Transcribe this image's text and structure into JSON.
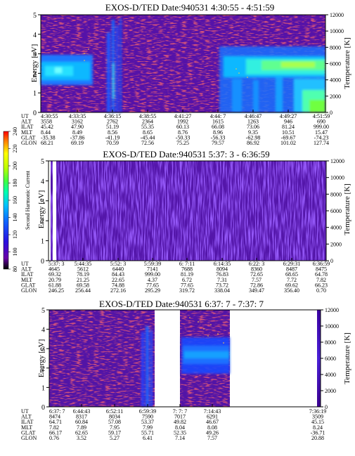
{
  "figure": {
    "colorbar": {
      "title": "Second Harmonic Current",
      "ticks": [
        "80",
        "100",
        "120",
        "140",
        "160",
        "180",
        "200",
        "220",
        "240"
      ],
      "colors": [
        "#000000",
        "#6a00a8",
        "#2a10e0",
        "#1060ff",
        "#00c0ff",
        "#00ffb0",
        "#40ff40",
        "#c0ff00",
        "#ffff00",
        "#ff8000",
        "#ff0000"
      ]
    }
  },
  "row_labels": [
    "UT",
    "ALT",
    "ILAT",
    "MLT",
    "GLAT",
    "GLON"
  ],
  "chart_data": [
    {
      "type": "heatmap",
      "title": "EXOS-D/TED   Date:940531  4:30:55 - 4:51:59",
      "ylabel": "Energy [eV]",
      "y2label": "Temperature [K]",
      "ylim": [
        0,
        5
      ],
      "y2lim": [
        0,
        12000
      ],
      "yticks": [
        "0",
        "1",
        "2",
        "3",
        "4",
        "5"
      ],
      "y2ticks": [
        "0",
        "2000",
        "4000",
        "6000",
        "8000",
        "10000",
        "12000"
      ],
      "xlim": [
        "4:30:55",
        "4:51:59"
      ],
      "ut": [
        "4:30:55",
        "4:33:35",
        "4:36:15",
        "4:38:55",
        "4:41:27",
        "4:44: 7",
        "4:46:47",
        "4:49:27",
        "4:51:59"
      ],
      "table": [
        [
          "3558",
          "3162",
          "2762",
          "2364",
          "1992",
          "1615",
          "1263",
          "946",
          "690"
        ],
        [
          "45.42",
          "47.90",
          "51.19",
          "55.35",
          "60.13",
          "66.08",
          "73.06",
          "81.24",
          "999.00"
        ],
        [
          "8.44",
          "8.49",
          "8.56",
          "8.65",
          "8.76",
          "8.96",
          "9.35",
          "10.51",
          "15.47"
        ],
        [
          "-35.38",
          "-37.86",
          "-41.19",
          "-45.44",
          "-50.33",
          "-56.33",
          "-62.98",
          "-69.67",
          "-74.23"
        ],
        [
          "68.21",
          "69.19",
          "70.59",
          "72.56",
          "75.25",
          "79.57",
          "86.92",
          "101.02",
          "127.74"
        ]
      ]
    },
    {
      "type": "heatmap",
      "title": "EXOS-D/TED   Date:940531  5:37: 3 - 6:36:59",
      "ylabel": "Energy [eV]",
      "y2label": "Temperature [K]",
      "ylim": [
        0,
        5
      ],
      "y2lim": [
        0,
        12000
      ],
      "yticks": [
        "0",
        "1",
        "2",
        "3",
        "4",
        "5"
      ],
      "y2ticks": [
        "0",
        "2000",
        "4000",
        "6000",
        "8000",
        "10000",
        "12000"
      ],
      "xlim": [
        "5:37: 3",
        "6:36:59"
      ],
      "ut": [
        "5:37: 3",
        "5:44:35",
        "5:52: 3",
        "5:59:39",
        "6: 7:11",
        "6:14:35",
        "6:22: 3",
        "6:29:31",
        "6:36:59"
      ],
      "table": [
        [
          "4645",
          "5612",
          "6440",
          "7141",
          "7688",
          "8094",
          "8360",
          "8487",
          "8475"
        ],
        [
          "69.32",
          "78.19",
          "84.43",
          "999.00",
          "81.19",
          "76.83",
          "72.65",
          "68.65",
          "64.78"
        ],
        [
          "20.79",
          "21.25",
          "22.65",
          "4.37",
          "6.72",
          "7.31",
          "7.57",
          "7.72",
          "7.82"
        ],
        [
          "61.88",
          "69.58",
          "74.88",
          "77.65",
          "77.65",
          "73.72",
          "72.86",
          "69.62",
          "66.23"
        ],
        [
          "246.25",
          "256.44",
          "272.16",
          "295.29",
          "319.72",
          "338.04",
          "349.47",
          "356.40",
          "0.70"
        ]
      ]
    },
    {
      "type": "heatmap",
      "title": "EXOS-D/TED   Date:940531  6:37: 7 - 7:37: 7",
      "ylabel": "Energy [eV]",
      "y2label": "Temperature [K]",
      "ylim": [
        0,
        5
      ],
      "y2lim": [
        0,
        12000
      ],
      "yticks": [
        "0",
        "1",
        "2",
        "3",
        "4",
        "5"
      ],
      "y2ticks": [
        "0",
        "2000",
        "4000",
        "6000",
        "8000",
        "10000",
        "12000"
      ],
      "xlim": [
        "6:37: 7",
        "7:37: 7"
      ],
      "ut": [
        "6:37: 7",
        "6:44:43",
        "6:52:11",
        "6:59:39",
        "7: 7: 7",
        "7:14:43",
        "",
        "",
        "7:36:19"
      ],
      "table": [
        [
          "8474",
          "8317",
          "8034",
          "7590",
          "7017",
          "6291",
          "",
          "",
          "3509"
        ],
        [
          "64.71",
          "60.84",
          "57.08",
          "53.37",
          "49.82",
          "46.67",
          "",
          "",
          "45.15"
        ],
        [
          "7.82",
          "7.89",
          "7.95",
          "7.99",
          "8.04",
          "8.08",
          "",
          "",
          "8.24"
        ],
        [
          "66.17",
          "62.65",
          "59.17",
          "55.71",
          "52.35",
          "49.26",
          "",
          "",
          "-36.71"
        ],
        [
          "0.76",
          "3.52",
          "5.27",
          "6.41",
          "7.14",
          "7.57",
          "",
          "",
          "20.88"
        ]
      ]
    }
  ]
}
